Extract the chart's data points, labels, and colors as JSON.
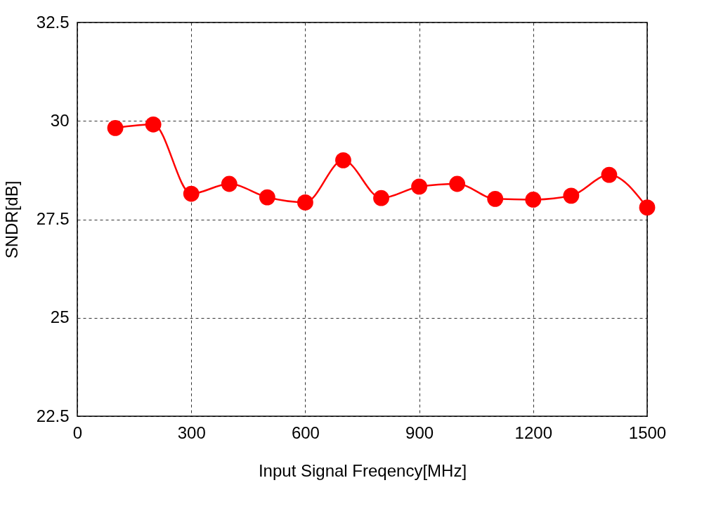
{
  "chart_data": {
    "type": "line",
    "xlabel": "Input Signal Freqency[MHz]",
    "ylabel": "SNDR[dB]",
    "x": [
      100,
      200,
      300,
      400,
      500,
      600,
      700,
      800,
      900,
      1000,
      1100,
      1200,
      1300,
      1400,
      1500
    ],
    "series": [
      {
        "color": "#ff0000",
        "values": [
          29.82,
          29.91,
          28.15,
          28.4,
          28.06,
          27.93,
          29.0,
          28.04,
          28.33,
          28.4,
          28.02,
          28.0,
          28.1,
          28.63,
          27.8
        ]
      }
    ],
    "xlim": [
      0,
      1500
    ],
    "xticks": [
      0,
      300,
      600,
      900,
      1200,
      1500
    ],
    "ylim": [
      22.5,
      32.5
    ],
    "yticks": [
      22.5,
      25,
      27.5,
      30,
      32.5
    ],
    "grid": true,
    "marker": "circle",
    "line_style": "solid",
    "legend": false
  }
}
